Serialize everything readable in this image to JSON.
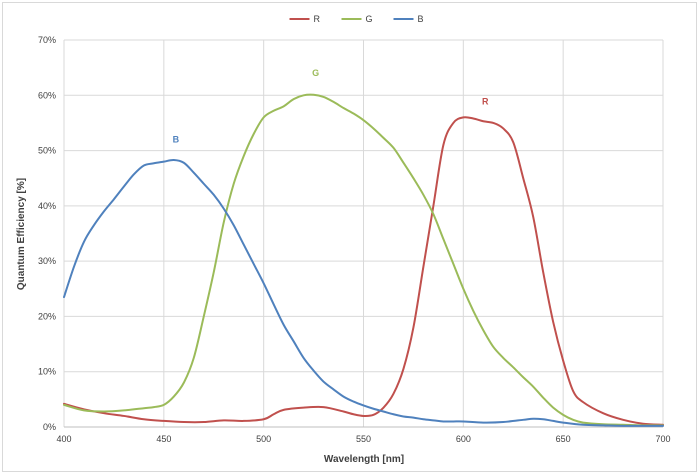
{
  "chart_data": {
    "type": "line",
    "xlabel": "Wavelength [nm]",
    "ylabel": "Quantum Efficiency  [%]",
    "xlim": [
      400,
      700
    ],
    "ylim": [
      0,
      70
    ],
    "x_ticks": [
      "400",
      "450",
      "500",
      "550",
      "600",
      "650",
      "700"
    ],
    "y_ticks": [
      "0%",
      "10%",
      "20%",
      "30%",
      "40%",
      "50%",
      "60%",
      "70%"
    ],
    "grid": true,
    "legend_position": "top-center",
    "series": [
      {
        "name": "R",
        "color": "#c0504d",
        "annotation": {
          "text": "R",
          "x": 611,
          "y": 58.3
        },
        "points": [
          [
            400,
            4.2
          ],
          [
            410,
            3.2
          ],
          [
            420,
            2.5
          ],
          [
            430,
            2.0
          ],
          [
            440,
            1.4
          ],
          [
            450,
            1.1
          ],
          [
            460,
            0.9
          ],
          [
            470,
            0.9
          ],
          [
            480,
            1.2
          ],
          [
            490,
            1.1
          ],
          [
            500,
            1.4
          ],
          [
            505,
            2.3
          ],
          [
            510,
            3.1
          ],
          [
            520,
            3.5
          ],
          [
            530,
            3.6
          ],
          [
            540,
            2.8
          ],
          [
            545,
            2.3
          ],
          [
            550,
            2.0
          ],
          [
            555,
            2.2
          ],
          [
            560,
            3.5
          ],
          [
            565,
            6.0
          ],
          [
            570,
            10.5
          ],
          [
            575,
            18
          ],
          [
            580,
            29
          ],
          [
            585,
            40
          ],
          [
            590,
            51
          ],
          [
            595,
            55
          ],
          [
            600,
            56
          ],
          [
            605,
            55.8
          ],
          [
            610,
            55.3
          ],
          [
            615,
            55
          ],
          [
            620,
            54
          ],
          [
            625,
            51.5
          ],
          [
            630,
            45
          ],
          [
            635,
            38
          ],
          [
            640,
            28
          ],
          [
            645,
            19
          ],
          [
            650,
            12
          ],
          [
            655,
            6.5
          ],
          [
            660,
            4.5
          ],
          [
            670,
            2.5
          ],
          [
            680,
            1.3
          ],
          [
            690,
            0.6
          ],
          [
            700,
            0.4
          ]
        ]
      },
      {
        "name": "G",
        "color": "#9bbb59",
        "annotation": {
          "text": "G",
          "x": 526,
          "y": 63.5
        },
        "points": [
          [
            400,
            4.0
          ],
          [
            410,
            3.0
          ],
          [
            420,
            2.8
          ],
          [
            430,
            3.0
          ],
          [
            440,
            3.4
          ],
          [
            445,
            3.6
          ],
          [
            450,
            4.0
          ],
          [
            455,
            5.5
          ],
          [
            460,
            8.0
          ],
          [
            465,
            12.5
          ],
          [
            470,
            20
          ],
          [
            475,
            28
          ],
          [
            480,
            37
          ],
          [
            485,
            44
          ],
          [
            490,
            49
          ],
          [
            495,
            53
          ],
          [
            500,
            56
          ],
          [
            505,
            57.2
          ],
          [
            510,
            58
          ],
          [
            515,
            59.3
          ],
          [
            520,
            60
          ],
          [
            525,
            60.1
          ],
          [
            530,
            59.7
          ],
          [
            535,
            58.8
          ],
          [
            540,
            57.7
          ],
          [
            545,
            56.7
          ],
          [
            550,
            55.5
          ],
          [
            555,
            54
          ],
          [
            560,
            52.3
          ],
          [
            565,
            50.5
          ],
          [
            570,
            47.8
          ],
          [
            575,
            45
          ],
          [
            580,
            42
          ],
          [
            585,
            38.5
          ],
          [
            590,
            34
          ],
          [
            595,
            29.5
          ],
          [
            600,
            25
          ],
          [
            605,
            21
          ],
          [
            610,
            17.5
          ],
          [
            615,
            14.5
          ],
          [
            620,
            12.5
          ],
          [
            625,
            10.8
          ],
          [
            630,
            9.0
          ],
          [
            635,
            7.3
          ],
          [
            640,
            5.3
          ],
          [
            645,
            3.5
          ],
          [
            650,
            2.2
          ],
          [
            655,
            1.3
          ],
          [
            660,
            0.8
          ],
          [
            670,
            0.5
          ],
          [
            680,
            0.4
          ],
          [
            690,
            0.3
          ],
          [
            700,
            0.3
          ]
        ]
      },
      {
        "name": "B",
        "color": "#4f81bd",
        "annotation": {
          "text": "B",
          "x": 456,
          "y": 51.5
        },
        "points": [
          [
            400,
            23.5
          ],
          [
            405,
            29
          ],
          [
            410,
            33.5
          ],
          [
            415,
            36.5
          ],
          [
            420,
            39
          ],
          [
            425,
            41.2
          ],
          [
            430,
            43.5
          ],
          [
            435,
            45.7
          ],
          [
            440,
            47.3
          ],
          [
            445,
            47.7
          ],
          [
            450,
            48.0
          ],
          [
            455,
            48.3
          ],
          [
            460,
            47.8
          ],
          [
            465,
            46.0
          ],
          [
            470,
            44
          ],
          [
            475,
            42
          ],
          [
            480,
            39.5
          ],
          [
            485,
            36.5
          ],
          [
            490,
            33
          ],
          [
            495,
            29.5
          ],
          [
            500,
            26
          ],
          [
            505,
            22.2
          ],
          [
            510,
            18.5
          ],
          [
            515,
            15.5
          ],
          [
            520,
            12.5
          ],
          [
            525,
            10.2
          ],
          [
            530,
            8.2
          ],
          [
            535,
            6.8
          ],
          [
            540,
            5.5
          ],
          [
            545,
            4.6
          ],
          [
            550,
            3.9
          ],
          [
            555,
            3.3
          ],
          [
            560,
            2.8
          ],
          [
            565,
            2.3
          ],
          [
            570,
            1.9
          ],
          [
            575,
            1.7
          ],
          [
            580,
            1.4
          ],
          [
            585,
            1.2
          ],
          [
            590,
            1.0
          ],
          [
            595,
            1.0
          ],
          [
            600,
            1.0
          ],
          [
            610,
            0.8
          ],
          [
            620,
            0.9
          ],
          [
            630,
            1.3
          ],
          [
            635,
            1.5
          ],
          [
            640,
            1.4
          ],
          [
            645,
            1.1
          ],
          [
            650,
            0.8
          ],
          [
            660,
            0.4
          ],
          [
            670,
            0.3
          ],
          [
            680,
            0.2
          ],
          [
            700,
            0.2
          ]
        ]
      }
    ]
  }
}
